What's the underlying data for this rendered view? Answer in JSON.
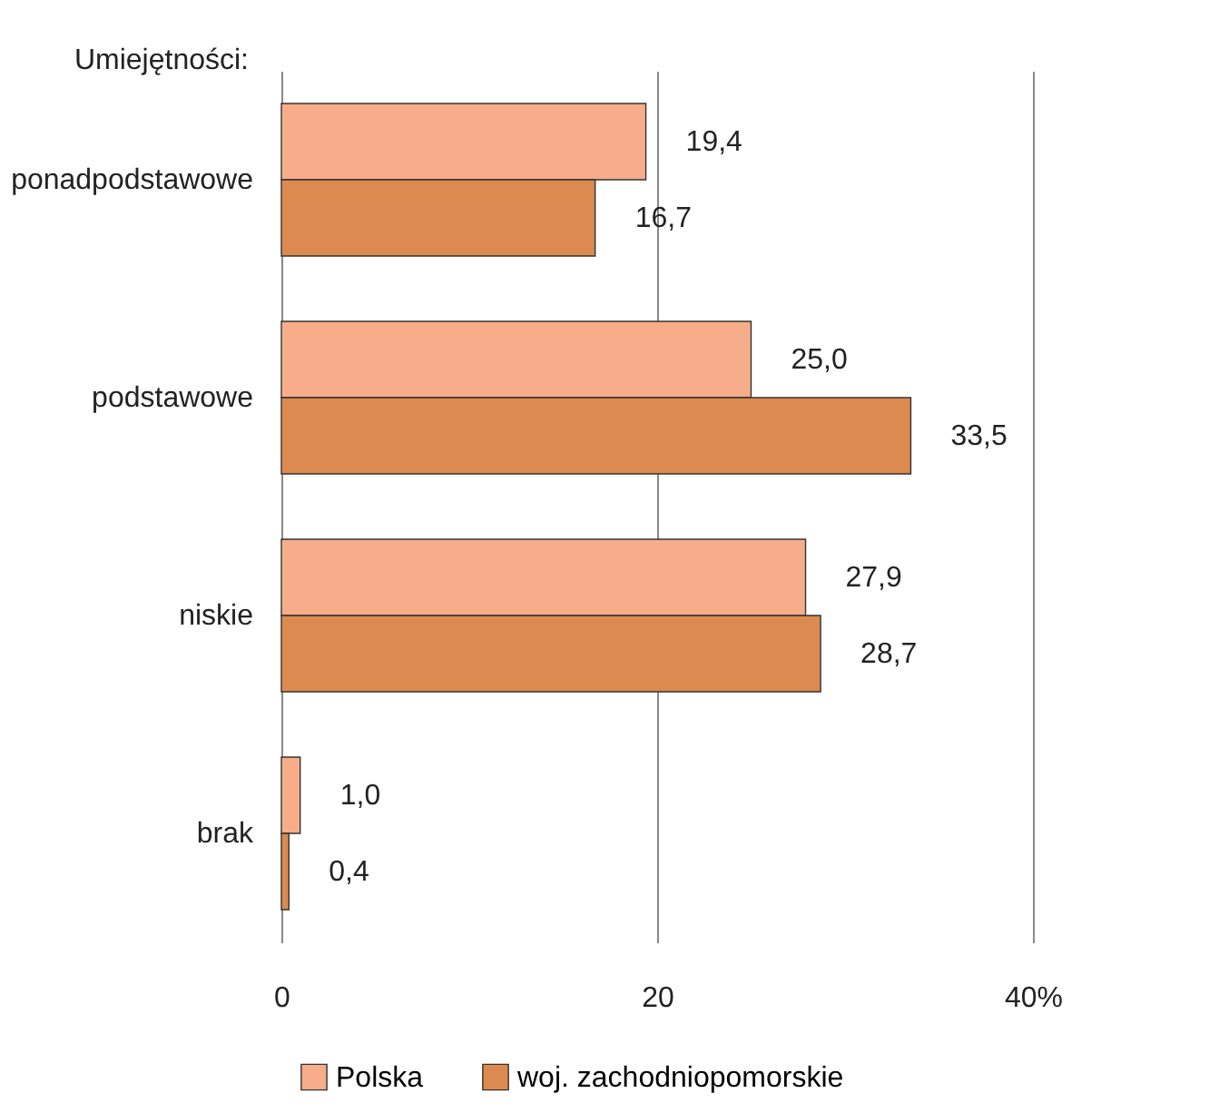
{
  "chart_data": {
    "type": "bar",
    "orientation": "horizontal",
    "categories": [
      "ponadpodstawowe",
      "podstawowe",
      "niskie",
      "brak"
    ],
    "series": [
      {
        "name": "Polska",
        "color": "#f7ad89",
        "values": [
          19.4,
          25.0,
          27.9,
          1.0
        ],
        "value_labels": [
          "19,4",
          "25,0",
          "27,9",
          "1,0"
        ]
      },
      {
        "name": "woj. zachodniopomorskie",
        "color": "#dc8a50",
        "values": [
          16.7,
          33.5,
          28.7,
          0.4
        ],
        "value_labels": [
          "16,7",
          "33,5",
          "28,7",
          "0,4"
        ]
      }
    ],
    "xlim": [
      0,
      40
    ],
    "xticks": [
      0,
      20,
      {
        "value": 40,
        "label": "40%"
      }
    ],
    "grid": "x",
    "legend": "bottom",
    "annotations": [
      "Umiejętności:"
    ]
  }
}
